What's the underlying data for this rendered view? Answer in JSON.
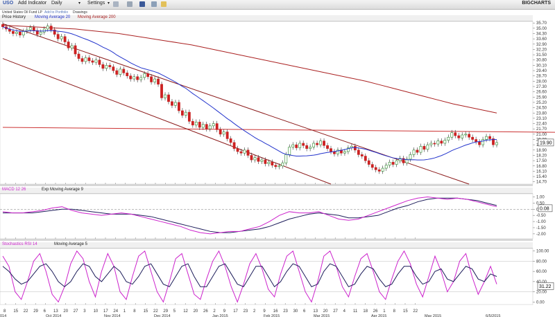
{
  "toolbar": {
    "symbol": "USO",
    "add_indicator": "Add Indicator",
    "interval": "Daily",
    "settings": "Settings",
    "brand": "BIGCHARTS"
  },
  "subbar": {
    "name": "United States Oil Fund LP",
    "add_portfolio": "Add to Portfolio",
    "drawings": "Drawings"
  },
  "colors": {
    "ma20": "#2233cc",
    "ma200": "#aa2020",
    "trendline": "#8b1a1a",
    "hline": "#cc3333",
    "macd": "#cc22cc",
    "signal": "#1c1c5a",
    "stoch": "#cc22cc",
    "stoch_ma": "#1c1c5a",
    "up": "#2a8a2a",
    "down": "#cc2222"
  },
  "chart_data": [
    {
      "type": "candlestick",
      "legend": [
        "Price History",
        "Moving Average 20",
        "Moving Average 200"
      ],
      "last_value_label": "19.90",
      "ylim": [
        14.4,
        35.9
      ],
      "yticks": [
        "35.70",
        "35.00",
        "34.30",
        "33.60",
        "32.90",
        "32.20",
        "31.50",
        "30.80",
        "30.10",
        "29.40",
        "28.70",
        "28.00",
        "27.30",
        "26.60",
        "25.90",
        "25.20",
        "24.50",
        "23.80",
        "23.10",
        "22.40",
        "21.70",
        "21.00",
        "20.30",
        "19.60",
        "18.90",
        "18.20",
        "17.50",
        "16.80",
        "16.10",
        "15.40",
        "14.70"
      ],
      "close": [
        35.2,
        34.9,
        34.6,
        34.3,
        34.5,
        34.1,
        34.6,
        34.8,
        35.1,
        34.7,
        34.2,
        34.5,
        34.9,
        35.3,
        34.8,
        34.2,
        33.6,
        33.9,
        33.2,
        32.4,
        32.7,
        31.6,
        31.0,
        30.6,
        31.1,
        30.7,
        30.5,
        30.8,
        30.2,
        29.7,
        30.1,
        29.9,
        29.4,
        28.9,
        29.6,
        29.1,
        28.7,
        28.3,
        28.6,
        28.2,
        28.5,
        29.0,
        28.6,
        27.9,
        28.3,
        27.6,
        25.8,
        26.2,
        25.3,
        24.8,
        25.2,
        24.1,
        23.5,
        23.9,
        22.7,
        22.2,
        22.6,
        21.9,
        22.3,
        21.7,
        22.1,
        22.4,
        21.6,
        21.0,
        21.3,
        20.4,
        19.9,
        19.1,
        18.7,
        18.5,
        18.9,
        18.2,
        17.6,
        17.9,
        17.4,
        17.6,
        17.1,
        17.3,
        16.9,
        16.7,
        16.8,
        17.2,
        18.3,
        19.3,
        19.6,
        19.2,
        19.8,
        19.5,
        19.1,
        19.3,
        19.8,
        19.6,
        20.1,
        19.5,
        19.1,
        18.7,
        18.4,
        18.9,
        18.5,
        18.7,
        19.2,
        19.4,
        18.9,
        18.3,
        18.1,
        17.5,
        17.0,
        16.6,
        16.3,
        16.1,
        16.5,
        16.9,
        17.3,
        17.0,
        17.5,
        17.8,
        17.2,
        17.7,
        18.3,
        18.9,
        18.6,
        19.4,
        19.0,
        19.6,
        19.8,
        19.7,
        20.1,
        19.8,
        20.2,
        20.6,
        21.2,
        20.8,
        20.5,
        20.9,
        21.0,
        20.6,
        20.3,
        20.0,
        19.6,
        20.3,
        20.7,
        20.4,
        19.6,
        19.9
      ],
      "ma200": [
        35.4,
        35.3,
        35.2,
        35.1,
        35.0,
        34.9,
        34.7,
        34.5,
        34.3,
        34.0,
        33.7,
        33.4,
        33.1,
        32.8,
        32.4,
        32.0,
        31.6,
        31.2,
        30.8,
        30.4,
        30.0,
        29.6,
        29.2,
        28.8,
        28.4,
        28.0,
        27.5,
        27.0,
        26.5,
        26.0,
        25.5,
        25.0,
        24.6,
        24.2,
        23.8
      ],
      "trendlines": [
        {
          "from": [
            0,
            35.6
          ],
          "to": [
            135,
            14.4
          ]
        },
        {
          "from": [
            0,
            31.0
          ],
          "to": [
            95,
            14.4
          ]
        }
      ],
      "hline": [
        {
          "from": [
            0,
            21.9
          ],
          "to": [
            186,
            21.1
          ]
        }
      ]
    },
    {
      "type": "line",
      "legend": [
        "MACD 12 26",
        "Exp Moving Average 9"
      ],
      "last_value_label": "0.08",
      "ylim": [
        -2.4,
        1.25
      ],
      "yticks": [
        "1.00",
        "0.50",
        "0.00",
        "-0.50",
        "-1.00",
        "-1.50",
        "-2.00"
      ],
      "zero_line": 0.0,
      "macd": [
        -0.2,
        -0.3,
        -0.3,
        -0.2,
        -0.1,
        0.1,
        0.2,
        -0.1,
        -0.3,
        -0.4,
        -0.5,
        -0.4,
        -0.3,
        -0.4,
        -0.6,
        -0.8,
        -1.0,
        -1.2,
        -1.4,
        -1.7,
        -1.9,
        -2.0,
        -1.9,
        -1.8,
        -1.8,
        -1.6,
        -1.4,
        -1.0,
        -0.5,
        -0.2,
        -0.3,
        -0.3,
        -0.2,
        -0.5,
        -0.8,
        -0.9,
        -0.8,
        -0.5,
        -0.2,
        0.1,
        0.4,
        0.7,
        0.9,
        1.0,
        0.9,
        0.8,
        0.9,
        0.8,
        0.6,
        0.4,
        0.2
      ],
      "signal": [
        -0.3,
        -0.3,
        -0.3,
        -0.3,
        -0.2,
        -0.1,
        0.0,
        0.0,
        -0.1,
        -0.2,
        -0.3,
        -0.4,
        -0.4,
        -0.4,
        -0.5,
        -0.6,
        -0.8,
        -1.0,
        -1.2,
        -1.4,
        -1.6,
        -1.8,
        -1.9,
        -1.9,
        -1.8,
        -1.7,
        -1.6,
        -1.4,
        -1.1,
        -0.8,
        -0.6,
        -0.4,
        -0.3,
        -0.4,
        -0.5,
        -0.7,
        -0.7,
        -0.6,
        -0.5,
        -0.2,
        0.1,
        0.3,
        0.6,
        0.8,
        0.9,
        0.9,
        0.9,
        0.8,
        0.7,
        0.5,
        0.3
      ]
    },
    {
      "type": "line",
      "legend": [
        "Stochastics RSI 14",
        "Moving Average 5"
      ],
      "last_value_label": "31.22",
      "ylim": [
        -5,
        105
      ],
      "yticks": [
        "100.00",
        "80.00",
        "60.00",
        "40.00",
        "20.00",
        "0.00"
      ],
      "rsi": [
        90,
        70,
        20,
        5,
        40,
        80,
        95,
        60,
        15,
        0,
        30,
        75,
        100,
        85,
        40,
        10,
        60,
        95,
        70,
        20,
        5,
        50,
        90,
        100,
        60,
        20,
        0,
        40,
        85,
        95,
        55,
        15,
        5,
        45,
        80,
        100,
        70,
        30,
        0,
        35,
        75,
        95,
        65,
        25,
        10,
        55,
        90,
        100,
        60,
        20,
        0,
        40,
        90,
        100,
        70,
        30,
        10,
        50,
        85,
        95,
        60,
        20,
        5,
        45,
        80,
        100,
        75,
        35,
        10,
        50,
        90,
        60,
        20,
        40,
        80,
        95,
        50,
        15,
        40,
        70,
        35
      ],
      "ma5": [
        70,
        60,
        45,
        35,
        40,
        55,
        70,
        75,
        60,
        40,
        30,
        40,
        60,
        75,
        70,
        50,
        40,
        55,
        70,
        60,
        40,
        35,
        50,
        70,
        75,
        55,
        35,
        30,
        50,
        70,
        75,
        50,
        30,
        30,
        50,
        70,
        75,
        55,
        35,
        30,
        50,
        70,
        70,
        50,
        30,
        40,
        60,
        75,
        70,
        50,
        30,
        35,
        60,
        75,
        70,
        50,
        30,
        35,
        55,
        70,
        65,
        45,
        30,
        35,
        55,
        70,
        70,
        50,
        35,
        40,
        60,
        65,
        45,
        40,
        55,
        70,
        65,
        45,
        40,
        55,
        50
      ]
    }
  ],
  "xaxis": {
    "day_ticks": [
      "8",
      "15",
      "22",
      "29",
      "6",
      "13",
      "20",
      "27",
      "3",
      "10",
      "17",
      "24",
      "1",
      "8",
      "15",
      "22",
      "29",
      "5",
      "12",
      "20",
      "26",
      "2",
      "9",
      "17",
      "23",
      "2",
      "9",
      "16",
      "23",
      "30",
      "6",
      "13",
      "20",
      "27",
      "4",
      "11",
      "18",
      "26",
      "1",
      "8",
      "15",
      "22"
    ],
    "month_labels": [
      "014",
      "Oct 2014",
      "Nov 2014",
      "Dec 2014",
      "Jan 2015",
      "Feb 2015",
      "Mar 2015",
      "Apr 2015",
      "May 2015",
      "6/5/2015"
    ]
  }
}
